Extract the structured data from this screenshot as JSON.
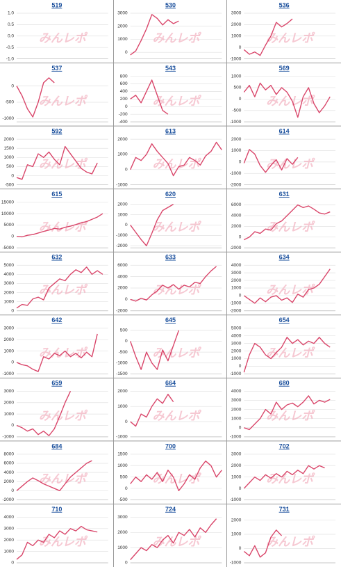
{
  "watermark": "みんレポ",
  "chart_data": [
    {
      "type": "line",
      "title": "519",
      "values": [],
      "ylim": [
        -1,
        1
      ],
      "yticks": [
        {
          "value": 1,
          "label": "1.0"
        },
        0.5,
        {
          "value": 0,
          "label": "0.0"
        },
        -0.5,
        {
          "value": -1,
          "label": "-1.0"
        }
      ],
      "grid": true,
      "color": "#d9466a"
    },
    {
      "type": "line",
      "title": "530",
      "values": [
        -200,
        100,
        900,
        1800,
        2900,
        2600,
        2100,
        2500,
        2200,
        2400
      ],
      "ylim": [
        -500,
        3000
      ],
      "yticks": [
        0,
        1000,
        2000,
        3000
      ],
      "grid": true,
      "color": "#d9466a"
    },
    {
      "type": "line",
      "title": "536",
      "values": [
        -200,
        -600,
        -400,
        -700,
        200,
        1000,
        2200,
        1800,
        2100,
        2500
      ],
      "ylim": [
        -1000,
        3000
      ],
      "yticks": [
        -1000,
        0,
        1000,
        2000,
        3000
      ],
      "grid": true,
      "color": "#d9466a"
    },
    {
      "type": "line",
      "title": "537",
      "values": [
        0,
        -300,
        -700,
        -950,
        -500,
        100,
        250,
        100
      ],
      "ylim": [
        -1100,
        300
      ],
      "yticks": [
        -1000,
        -500,
        0
      ],
      "grid": true,
      "color": "#d9466a"
    },
    {
      "type": "line",
      "title": "543",
      "values": [
        200,
        300,
        100,
        400,
        700,
        300,
        -100,
        -200
      ],
      "ylim": [
        -400,
        800
      ],
      "yticks": [
        -400,
        -200,
        0,
        200,
        400,
        600,
        800
      ],
      "grid": true,
      "color": "#d9466a"
    },
    {
      "type": "line",
      "title": "569",
      "values": [
        300,
        600,
        100,
        700,
        400,
        600,
        200,
        500,
        300,
        -100,
        -800,
        100,
        500,
        -200,
        -600,
        -300,
        100
      ],
      "ylim": [
        -1000,
        1000
      ],
      "yticks": [
        -1000,
        -500,
        0,
        500,
        1000
      ],
      "grid": true,
      "color": "#d9466a"
    },
    {
      "type": "line",
      "title": "592",
      "values": [
        -100,
        -200,
        600,
        500,
        1200,
        1000,
        1300,
        900,
        600,
        1600,
        1200,
        800,
        400,
        200,
        100,
        700
      ],
      "ylim": [
        -500,
        2000
      ],
      "yticks": [
        -500,
        0,
        500,
        1000,
        1500,
        2000
      ],
      "grid": true,
      "color": "#d9466a"
    },
    {
      "type": "line",
      "title": "613",
      "values": [
        0,
        800,
        600,
        1000,
        1700,
        1200,
        800,
        400,
        -400,
        200,
        300,
        800,
        600,
        300,
        900,
        1200,
        1800,
        1300
      ],
      "ylim": [
        -1000,
        2000
      ],
      "yticks": [
        -1000,
        0,
        1000,
        2000
      ],
      "grid": true,
      "color": "#d9466a"
    },
    {
      "type": "line",
      "title": "614",
      "values": [
        -100,
        1100,
        700,
        -300,
        -900,
        -300,
        200,
        -700,
        300,
        -200,
        400
      ],
      "ylim": [
        -2000,
        2000
      ],
      "yticks": [
        -2000,
        -1000,
        0,
        1000,
        2000
      ],
      "grid": true,
      "color": "#d9466a"
    },
    {
      "type": "line",
      "title": "615",
      "values": [
        0,
        -200,
        500,
        800,
        1500,
        2200,
        2800,
        3500,
        3200,
        4000,
        4500,
        5200,
        6000,
        6500,
        7500,
        8500,
        10000
      ],
      "ylim": [
        -5000,
        15000
      ],
      "yticks": [
        -5000,
        0,
        5000,
        10000,
        15000
      ],
      "grid": true,
      "color": "#d9466a"
    },
    {
      "type": "line",
      "title": "620",
      "values": [
        0,
        -700,
        -1400,
        -2000,
        -800,
        500,
        1400,
        1700,
        2000
      ],
      "ylim": [
        -2200,
        2200
      ],
      "yticks": [
        -2000,
        -1000,
        0,
        1000,
        2000
      ],
      "grid": true,
      "color": "#d9466a"
    },
    {
      "type": "line",
      "title": "631",
      "values": [
        -500,
        0,
        1000,
        700,
        1500,
        1300,
        2500,
        3000,
        4000,
        5000,
        6000,
        5500,
        5800,
        5200,
        4500,
        4300,
        4700
      ],
      "ylim": [
        -2000,
        6500
      ],
      "yticks": [
        -2000,
        0,
        2000,
        4000,
        6000
      ],
      "grid": true,
      "color": "#d9466a"
    },
    {
      "type": "line",
      "title": "632",
      "values": [
        300,
        700,
        600,
        1300,
        1500,
        1200,
        2500,
        3000,
        3500,
        3300,
        4000,
        4500,
        4200,
        4800,
        4000,
        4400,
        4000
      ],
      "ylim": [
        0,
        5000
      ],
      "yticks": [
        0,
        1000,
        2000,
        3000,
        4000,
        5000
      ],
      "grid": true,
      "color": "#d9466a"
    },
    {
      "type": "line",
      "title": "633",
      "values": [
        0,
        -300,
        200,
        -100,
        800,
        1500,
        2500,
        2000,
        2600,
        1800,
        2500,
        2200,
        3000,
        2800,
        4000,
        5000,
        5800
      ],
      "ylim": [
        -2000,
        6000
      ],
      "yticks": [
        -2000,
        0,
        2000,
        4000,
        6000
      ],
      "grid": true,
      "color": "#d9466a"
    },
    {
      "type": "line",
      "title": "634",
      "values": [
        0,
        -500,
        -1000,
        -300,
        -800,
        -200,
        0,
        -600,
        -300,
        -900,
        200,
        -200,
        800,
        1000,
        1500,
        2500,
        3500
      ],
      "ylim": [
        -2000,
        4000
      ],
      "yticks": [
        -2000,
        -1000,
        0,
        1000,
        2000,
        3000,
        4000
      ],
      "grid": true,
      "color": "#d9466a"
    },
    {
      "type": "line",
      "title": "642",
      "values": [
        0,
        -200,
        -300,
        -600,
        -800,
        500,
        300,
        800,
        600,
        1000,
        500,
        800,
        400,
        900,
        500,
        2500
      ],
      "ylim": [
        -1000,
        3000
      ],
      "yticks": [
        -1000,
        0,
        1000,
        2000,
        3000
      ],
      "grid": true,
      "color": "#d9466a"
    },
    {
      "type": "line",
      "title": "645",
      "values": [
        0,
        -700,
        -1300,
        -500,
        -1000,
        -1300,
        -400,
        -900,
        -200,
        500
      ],
      "ylim": [
        -1500,
        600
      ],
      "yticks": [
        -1500,
        -1000,
        -500,
        0,
        500
      ],
      "grid": true,
      "color": "#d9466a"
    },
    {
      "type": "line",
      "title": "654",
      "values": [
        -800,
        1500,
        3000,
        2500,
        1500,
        1000,
        1800,
        2500,
        3800,
        3000,
        3500,
        2800,
        3300,
        3000,
        3800,
        3000,
        2500
      ],
      "ylim": [
        -1000,
        5000
      ],
      "yticks": [
        -1000,
        0,
        1000,
        2000,
        3000,
        4000,
        5000
      ],
      "grid": true,
      "color": "#d9466a"
    },
    {
      "type": "line",
      "title": "659",
      "values": [
        0,
        -200,
        -500,
        -300,
        -800,
        -500,
        -900,
        -300,
        800,
        2000,
        3000
      ],
      "ylim": [
        -1000,
        3000
      ],
      "yticks": [
        -1000,
        0,
        1000,
        2000,
        3000
      ],
      "grid": true,
      "color": "#d9466a"
    },
    {
      "type": "line",
      "title": "664",
      "values": [
        0,
        -300,
        500,
        300,
        1000,
        1500,
        1200,
        1800,
        1300
      ],
      "ylim": [
        -1000,
        2000
      ],
      "yticks": [
        -1000,
        0,
        1000,
        2000
      ],
      "grid": true,
      "color": "#d9466a"
    },
    {
      "type": "line",
      "title": "680",
      "values": [
        0,
        -200,
        400,
        1000,
        2000,
        1500,
        2800,
        2000,
        2500,
        2700,
        2300,
        2800,
        3500,
        2600,
        3000,
        2800,
        3100
      ],
      "ylim": [
        -1000,
        4000
      ],
      "yticks": [
        -1000,
        0,
        1000,
        2000,
        3000,
        4000
      ],
      "grid": true,
      "color": "#d9466a"
    },
    {
      "type": "line",
      "title": "684",
      "values": [
        0,
        1000,
        2000,
        2800,
        2200,
        1500,
        1000,
        500,
        0,
        1500,
        3000,
        4000,
        5000,
        6000,
        6600
      ],
      "ylim": [
        -2000,
        8000
      ],
      "yticks": [
        -2000,
        0,
        2000,
        4000,
        6000,
        8000
      ],
      "grid": true,
      "color": "#d9466a"
    },
    {
      "type": "line",
      "title": "700",
      "values": [
        200,
        500,
        300,
        600,
        400,
        700,
        300,
        800,
        500,
        -100,
        200,
        600,
        400,
        900,
        1200,
        1000,
        500,
        800
      ],
      "ylim": [
        -500,
        1500
      ],
      "yticks": [
        -500,
        0,
        500,
        1000,
        1500
      ],
      "grid": true,
      "color": "#d9466a"
    },
    {
      "type": "line",
      "title": "702",
      "values": [
        0,
        500,
        1000,
        700,
        1200,
        900,
        1300,
        1000,
        1500,
        1200,
        1600,
        1300,
        2000,
        1700,
        2000,
        1800
      ],
      "ylim": [
        -1000,
        3000
      ],
      "yticks": [
        -1000,
        0,
        1000,
        2000,
        3000
      ],
      "grid": true,
      "color": "#d9466a"
    },
    {
      "type": "line",
      "title": "710",
      "values": [
        300,
        700,
        1800,
        1500,
        2000,
        1800,
        2500,
        2200,
        2800,
        2500,
        3000,
        2800,
        3200,
        2900,
        2800,
        2700
      ],
      "ylim": [
        0,
        4000
      ],
      "yticks": [
        0,
        1000,
        2000,
        3000,
        4000
      ],
      "grid": true,
      "color": "#d9466a"
    },
    {
      "type": "line",
      "title": "724",
      "values": [
        200,
        600,
        1000,
        800,
        1200,
        1000,
        1500,
        1800,
        1300,
        2000,
        1800,
        2200,
        1700,
        2300,
        2000,
        2500,
        2900
      ],
      "ylim": [
        0,
        3000
      ],
      "yticks": [
        0,
        1000,
        2000,
        3000
      ],
      "grid": true,
      "color": "#d9466a"
    },
    {
      "type": "line",
      "title": "731",
      "values": [
        -200,
        -500,
        200,
        -600,
        -300,
        800,
        1300,
        900
      ],
      "ylim": [
        -1000,
        2200
      ],
      "yticks": [
        -1000,
        0,
        1000,
        2000
      ],
      "grid": true,
      "color": "#d9466a"
    }
  ]
}
